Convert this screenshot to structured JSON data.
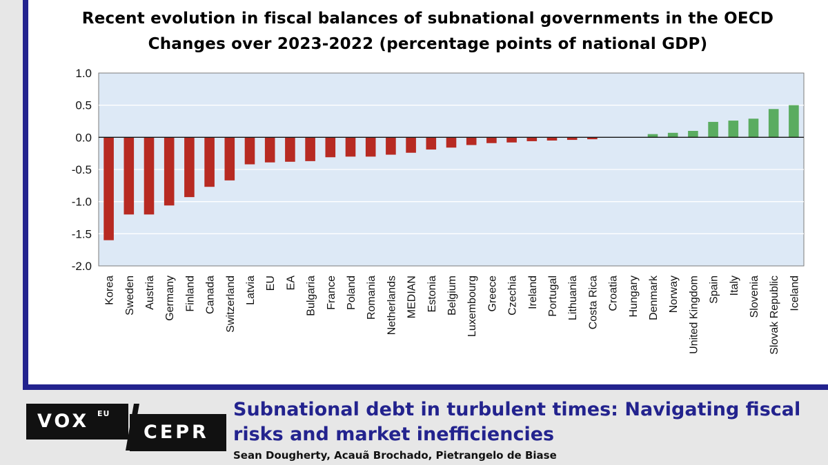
{
  "chart_data": {
    "type": "bar",
    "title": "Recent evolution in fiscal balances of subnational governments in the OECD",
    "subtitle": "Changes over 2023-2022 (percentage points of national GDP)",
    "xlabel": "",
    "ylabel": "",
    "ylim": [
      -2.0,
      1.0
    ],
    "yticks": [
      "1.0",
      "0.5",
      "0.0",
      "-0.5",
      "-1.0",
      "-1.5",
      "-2.0"
    ],
    "ytick_values": [
      1.0,
      0.5,
      0.0,
      -0.5,
      -1.0,
      -1.5,
      -2.0
    ],
    "grid": true,
    "categories": [
      "Korea",
      "Sweden",
      "Austria",
      "Germany",
      "Finland",
      "Canada",
      "Switzerland",
      "Latvia",
      "EU",
      "EA",
      "Bulgaria",
      "France",
      "Poland",
      "Romania",
      "Netherlands",
      "MEDIAN",
      "Estonia",
      "Belgium",
      "Luxembourg",
      "Greece",
      "Czechia",
      "Ireland",
      "Portugal",
      "Lithuania",
      "Costa Rica",
      "Croatia",
      "Hungary",
      "Denmark",
      "Norway",
      "United Kingdom",
      "Spain",
      "Italy",
      "Slovenia",
      "Slovak Republic",
      "Iceland"
    ],
    "values": [
      -1.6,
      -1.2,
      -1.2,
      -1.06,
      -0.93,
      -0.77,
      -0.67,
      -0.42,
      -0.39,
      -0.38,
      -0.37,
      -0.31,
      -0.3,
      -0.3,
      -0.27,
      -0.24,
      -0.19,
      -0.16,
      -0.12,
      -0.09,
      -0.08,
      -0.06,
      -0.05,
      -0.04,
      -0.03,
      0.0,
      0.0,
      0.05,
      0.07,
      0.1,
      0.24,
      0.26,
      0.29,
      0.44,
      0.5
    ],
    "negative_color": "#b72a22",
    "positive_color": "#5aac60",
    "plot_background": "#dde9f6"
  },
  "footer": {
    "logo_vox": "VOX",
    "logo_eu": "EU",
    "logo_cepr": "CEPR",
    "headline": "Subnational debt in turbulent times: Navigating fiscal risks and market inefficiencies",
    "authors": "Sean Dougherty, Acauã Brochado, Pietrangelo de Biase"
  },
  "colors": {
    "accent": "#23238e",
    "background": "#e7e7e7"
  }
}
